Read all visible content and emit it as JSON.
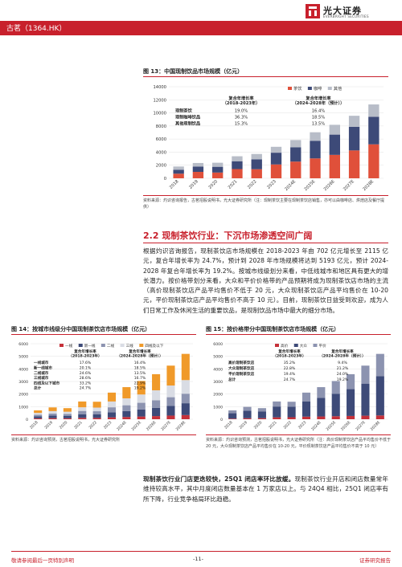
{
  "header": {
    "company": "古茗（1364.HK）",
    "logo_cn": "光大证券",
    "logo_en": "EVERBRIGHT SECURITIES"
  },
  "fig13": {
    "title": "图 13：中国现制饮品市场规模（亿元）",
    "source": "资料来源：灼识咨询报告，古茗招股说明书，光大证券研究所（注：现制茶饮主要在现制茶饮店销售，亦可以由咖啡店、烘焙店及餐厅提供）",
    "table": {
      "head": [
        "复合年增长率\n（2018-2023年）",
        "复合年增长率\n（2024-2028年（预计））"
      ],
      "rows": [
        [
          "现制茶饮",
          "19.0%",
          "16.4%"
        ],
        [
          "现制咖啡饮品",
          "36.3%",
          "18.5%"
        ],
        [
          "其他现制饮品",
          "15.3%",
          "13.5%"
        ]
      ]
    }
  },
  "fig14": {
    "title": "图 14：按城市线级分中国现制茶饮店市场规模（亿元）",
    "source": "资料来源：灼识咨询预测，古茗招股说明书，光大证券研究所",
    "table": {
      "head": [
        "复合年增长率\n（2018-2023年）",
        "复合年增长率\n（2024-2028年（预计））"
      ],
      "rows": [
        [
          "一线城市",
          "17.6%",
          "16.4%"
        ],
        [
          "新一线城市",
          "20.1%",
          "18.5%"
        ],
        [
          "二线城市",
          "24.6%",
          "13.5%"
        ],
        [
          "三线城市",
          "28.6%",
          "16.7%"
        ],
        [
          "四线及以下城市",
          "33.2%",
          "22.9%"
        ],
        [
          "总计",
          "24.7%",
          "19.2%"
        ]
      ]
    }
  },
  "fig15": {
    "title": "图 15：按价格带分中国现制茶饮店市场规模（亿元）",
    "source": "资料来源：灼识咨询预测，古茗招股说明书，光大证券研究所（注：高价现制茶饮店产品平均售价不低于 20 元，大众现制茶饮店产品平均售价在 10-20 元，平价现制茶饮店产品平均售价不高于 10 元）",
    "table": {
      "head": [
        "复合年增长率\n（2018-2023年）",
        "复合年增长率\n（2024-2028年（预计））"
      ],
      "rows": [
        [
          "高价现制茶饮店",
          "35.2%",
          "9.4%"
        ],
        [
          "大众现制茶饮店",
          "22.8%",
          "21.2%"
        ],
        [
          "平价现制茶饮店",
          "19.4%",
          "24.0%"
        ],
        [
          "总计",
          "24.7%",
          "19.2%"
        ]
      ]
    }
  },
  "section": {
    "title": "2.2  现制茶饮行业：下沉市场渗透空间广阔"
  },
  "paragraph1": "根据灼识咨询报告，现制茶饮店市场规模在 2018-2023 年由 702 亿元增长至 2115 亿元，复合年增长率为 24.7%，预计到 2028 年市场规模将达到 5193 亿元，预计 2024-2028 年复合年增长率为 19.2%。按城市线级划分来看，中低线城市和地区具有更大的增长潜力。按价格带划分来看，大众和平价价格带的产品预期将成为现制茶饮店市场的主流（高价现制茶饮店产品平均售价不低于 20 元，大众现制茶饮店产品平均售价在 10-20 元，平价现制茶饮店产品平均售价不高于 10 元）。目前，现制茶饮日益受到欢迎，成为人们日常工作及休闲生活的重要饮品，是现制饮品市场中最大的细分市场。",
  "paragraph2_bold": "现制茶饮行业门店更迭较快，25Q1 闭店率环比放缓。",
  "paragraph2": "现制茶饮行业开店和闭店数量常年维持较高水平，其中月度闭店数量基本在 1 万家店以上。与 24Q4 相比，25Q1 闭店率有所下降，行业竞争格局环比趋稳。",
  "footer": {
    "left": "敬请参阅最后一页特别声明",
    "center": "-11-",
    "right": "证券研究报告"
  },
  "chart_data": [
    {
      "type": "bar",
      "stacked": true,
      "title": "图 13：中国现制饮品市场规模（亿元）",
      "categories": [
        "2018",
        "2019",
        "2020",
        "2021",
        "2022",
        "2023",
        "2024E",
        "2025E",
        "2026E",
        "2027E",
        "2028E"
      ],
      "series": [
        {
          "name": "茶饮",
          "color": "#e0503a",
          "values": [
            702,
            980,
            880,
            1410,
            1390,
            2115,
            2550,
            3040,
            3580,
            4260,
            5193
          ]
        },
        {
          "name": "咖啡",
          "color": "#3d4a78",
          "values": [
            590,
            800,
            880,
            1200,
            1500,
            1800,
            2200,
            2700,
            3100,
            3600,
            4200
          ]
        },
        {
          "name": "其他",
          "color": "#b8bdc8",
          "values": [
            510,
            560,
            620,
            760,
            830,
            900,
            1100,
            1300,
            1500,
            1700,
            1900
          ]
        }
      ],
      "ylim": [
        0,
        14000
      ],
      "yticks": [
        0,
        2000,
        4000,
        6000,
        8000,
        10000,
        12000,
        14000
      ],
      "grid": true,
      "legend": "top-right"
    },
    {
      "type": "bar",
      "stacked": true,
      "title": "图 14：按城市线级分中国现制茶饮店市场规模（亿元）",
      "categories": [
        "2018",
        "2019",
        "2020",
        "2021",
        "2022",
        "2023",
        "2024E",
        "2025E",
        "2026E",
        "2027E",
        "2028E"
      ],
      "series": [
        {
          "name": "一线",
          "color": "#c5313a",
          "values": [
            70,
            85,
            75,
            110,
            105,
            150,
            180,
            215,
            250,
            290,
            330
          ]
        },
        {
          "name": "新一线",
          "color": "#3d4a78",
          "values": [
            160,
            200,
            180,
            290,
            280,
            400,
            470,
            560,
            660,
            780,
            940
          ]
        },
        {
          "name": "二线",
          "color": "#8c93b0",
          "values": [
            130,
            170,
            160,
            260,
            250,
            400,
            460,
            530,
            600,
            680,
            760
          ]
        },
        {
          "name": "三线",
          "color": "#d9dce4",
          "values": [
            140,
            190,
            180,
            290,
            290,
            460,
            550,
            660,
            790,
            930,
            1080
          ]
        },
        {
          "name": "四线及以下",
          "color": "#f09a2a",
          "values": [
            202,
            295,
            285,
            460,
            465,
            705,
            890,
            1075,
            1280,
            1580,
            2083
          ]
        }
      ],
      "ylim": [
        0,
        6000
      ],
      "yticks": [
        0,
        1000,
        2000,
        3000,
        4000,
        5000,
        6000
      ],
      "grid": true,
      "legend": "top"
    },
    {
      "type": "bar",
      "stacked": true,
      "title": "图 15：按价格带分中国现制茶饮店市场规模（亿元）",
      "categories": [
        "2018",
        "2019",
        "2020",
        "2021",
        "2022",
        "2023",
        "2024E",
        "2025E",
        "2026E",
        "2027E",
        "2028E"
      ],
      "series": [
        {
          "name": "高价",
          "color": "#c5313a",
          "values": [
            45,
            80,
            85,
            150,
            160,
            205,
            220,
            240,
            260,
            280,
            300
          ]
        },
        {
          "name": "大众",
          "color": "#3d4a78",
          "values": [
            430,
            600,
            540,
            860,
            840,
            1200,
            1470,
            1790,
            2130,
            2550,
            3120
          ]
        },
        {
          "name": "平价",
          "color": "#8c93b0",
          "values": [
            227,
            300,
            255,
            400,
            390,
            710,
            860,
            1005,
            1190,
            1430,
            1773
          ]
        }
      ],
      "ylim": [
        0,
        6000
      ],
      "yticks": [
        0,
        1000,
        2000,
        3000,
        4000,
        5000,
        6000
      ],
      "grid": true,
      "legend": "top"
    }
  ]
}
